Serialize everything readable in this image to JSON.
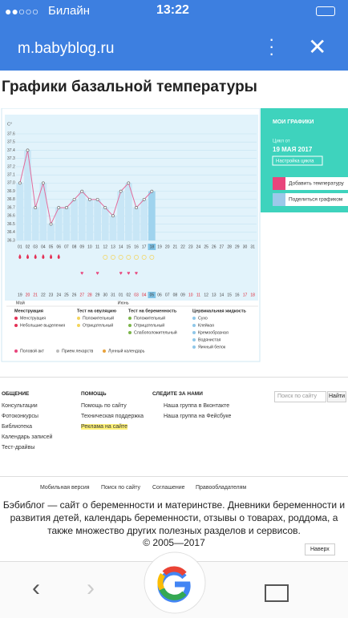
{
  "status_bar": {
    "carrier": "Билайн",
    "time": "13:22"
  },
  "browser": {
    "url": "m.babyblog.ru"
  },
  "page": {
    "title": "Графики базальной температуры"
  },
  "chart_data": {
    "type": "line",
    "y_unit": "C°",
    "categories": [
      "01",
      "02",
      "03",
      "04",
      "05",
      "06",
      "07",
      "08",
      "09",
      "10",
      "11",
      "12",
      "13",
      "14",
      "15",
      "16",
      "17",
      "18",
      "19",
      "20",
      "21",
      "22",
      "23",
      "24",
      "25",
      "26",
      "27",
      "28",
      "29",
      "30",
      "31"
    ],
    "values": [
      37.0,
      37.4,
      36.7,
      37.0,
      36.5,
      36.7,
      36.7,
      36.8,
      36.9,
      36.8,
      36.8,
      36.7,
      36.6,
      36.9,
      37.0,
      36.7,
      36.8,
      36.9,
      null,
      null,
      null,
      null,
      null,
      null,
      null,
      null,
      null,
      null,
      null,
      null,
      null
    ],
    "dates": [
      "19",
      "20",
      "21",
      "22",
      "23",
      "24",
      "25",
      "26",
      "27",
      "28",
      "29",
      "30",
      "31",
      "01",
      "02",
      "03",
      "04",
      "05",
      "06",
      "07",
      "08",
      "09",
      "10",
      "11",
      "12",
      "13",
      "14",
      "15",
      "16",
      "17",
      "18"
    ],
    "months": [
      "Май",
      "Июнь"
    ],
    "ylim": [
      36.3,
      37.6
    ],
    "yticks": [
      37.6,
      37.5,
      37.4,
      37.3,
      37.2,
      37.1,
      {
        "value": 37,
        "label": "37.0"
      },
      36.9,
      36.8,
      36.7,
      36.6,
      36.5,
      36.4,
      36.3
    ]
  },
  "side_panel": {
    "my_charts": "МОИ ГРАФИКИ",
    "cycle_from": "Цикл от",
    "cycle_date": "19 МАЯ 2017",
    "settings": "Настройка цикла",
    "add_temp": "Добавить температуру",
    "share": "Поделиться графиком"
  },
  "legend": {
    "groups": [
      {
        "title": "Менструация",
        "items": [
          "Менструация",
          "Небольшие выделения"
        ]
      },
      {
        "title": "Тест на овуляцию",
        "items": [
          "Положительный",
          "Отрицательный"
        ]
      },
      {
        "title": "Тест на беременность",
        "items": [
          "Положительный",
          "Отрицательный",
          "Слабоположительный"
        ]
      },
      {
        "title": "Цервикальная жидкость",
        "items": [
          "Сухо",
          "Клейкая",
          "Кремообразная",
          "Водянистая",
          "Яичный белок"
        ]
      }
    ],
    "extra": [
      "Половой акт",
      "Прием лекарств",
      "Лунный календарь"
    ]
  },
  "footer": {
    "columns": [
      {
        "title": "ОБЩЕНИЕ",
        "links": [
          "Консультации",
          "Фотоконкурсы",
          "Библиотека",
          "Календарь записей",
          "Тест-драйвы"
        ]
      },
      {
        "title": "ПОМОЩЬ",
        "links": [
          "Помощь по сайту",
          "Техническая поддержка",
          "Реклама на сайте"
        ]
      },
      {
        "title": "СЛЕДИТЕ ЗА НАМИ",
        "links": [
          "Наша группа в Вконтакте",
          "Наша группа на Фейсбуке"
        ]
      }
    ],
    "search_placeholder": "Поиск по сайту",
    "search_button": "Найти",
    "bottom_links": [
      "Мобильная версия",
      "Поиск по сайту",
      "Соглашение",
      "Правообладателям"
    ],
    "about": "Бэбиблог — сайт о беременности и материнстве. Дневники беременности и развития детей, календарь беременности, отзывы о товарах, роддома, а также множество других полезных разделов и сервисов.",
    "copyright": "© 2005—2017",
    "to_top": "Наверх"
  }
}
